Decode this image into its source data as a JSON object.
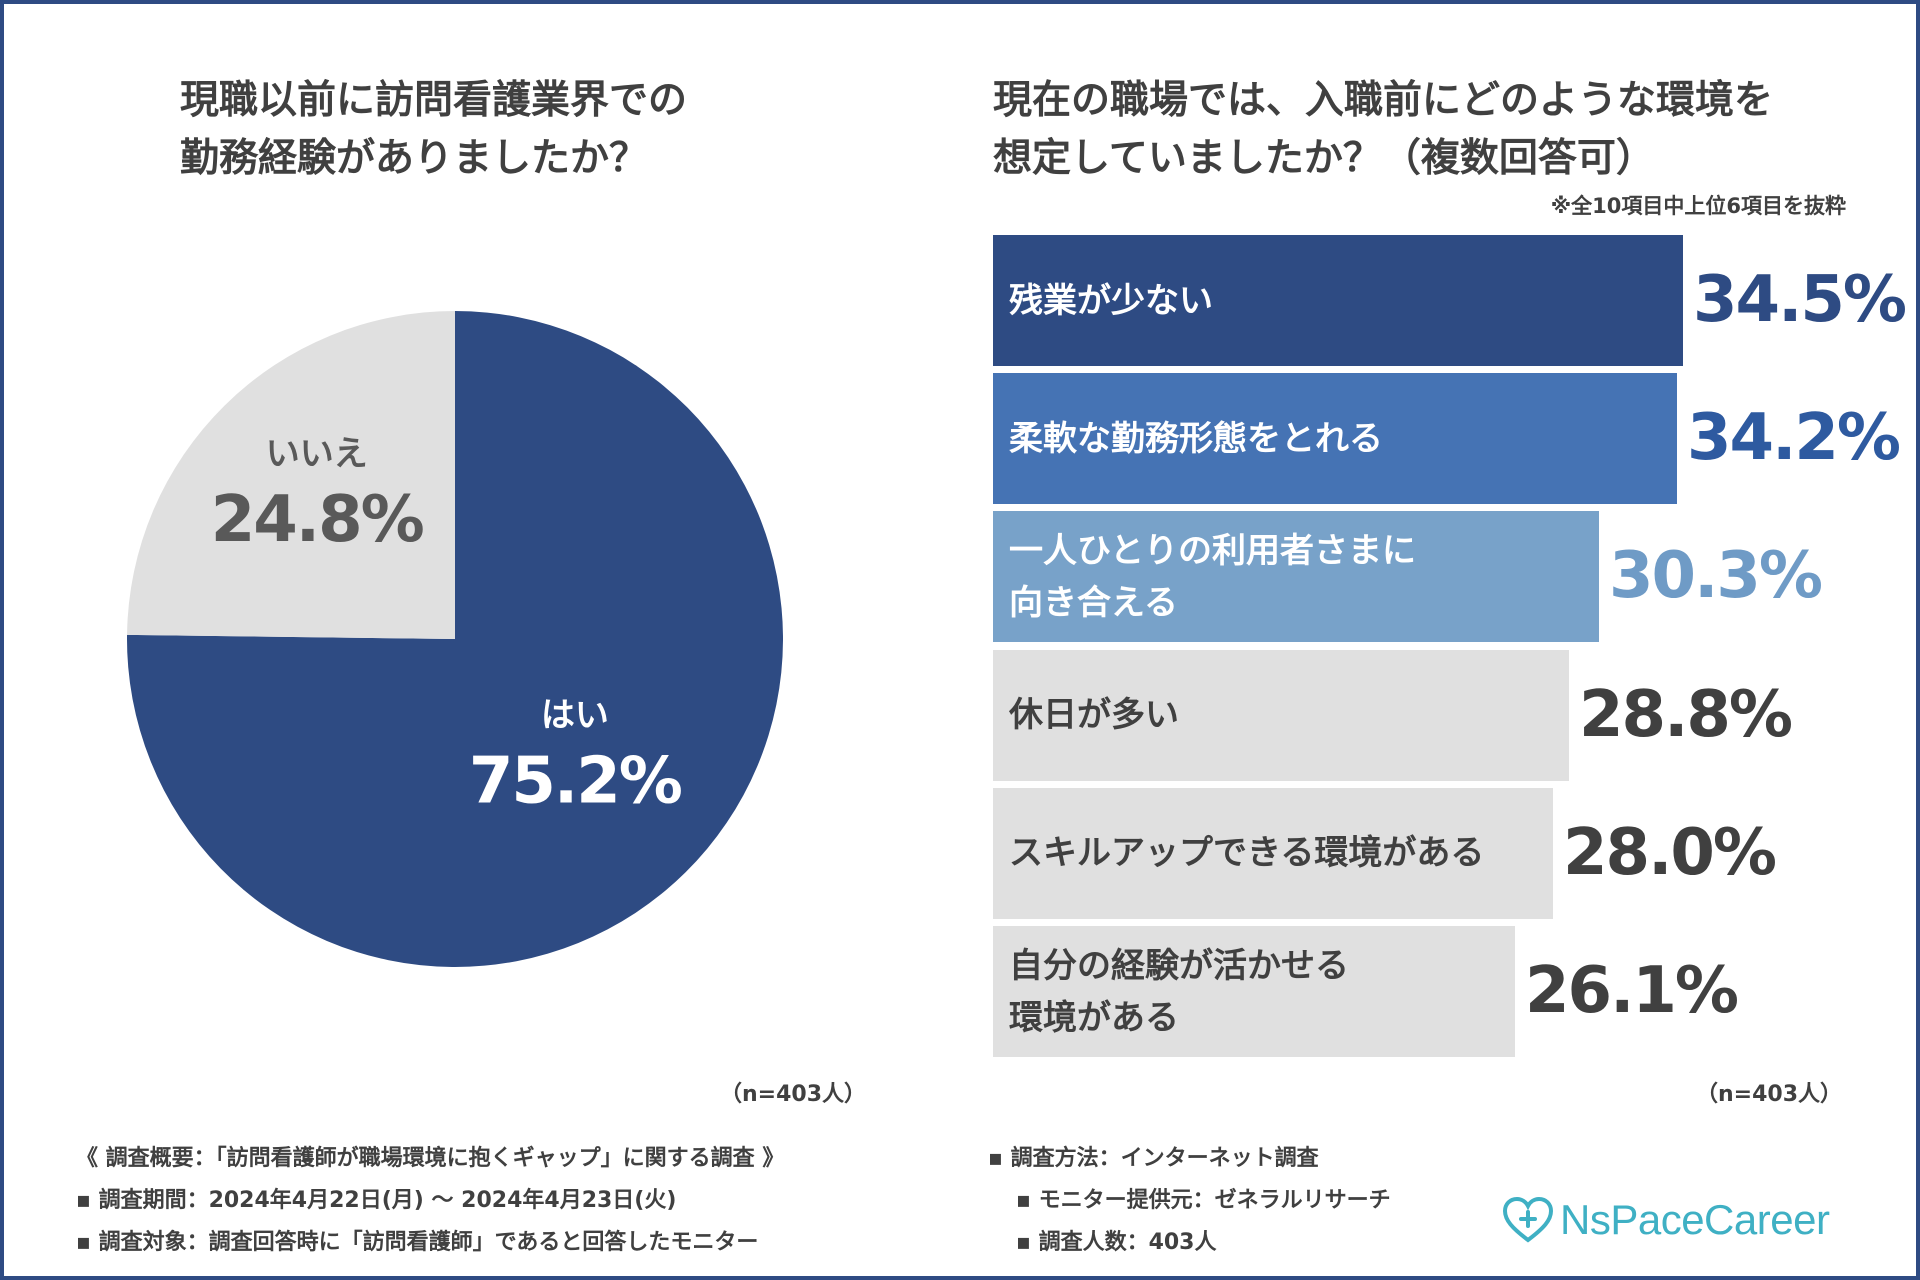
{
  "left_chart": {
    "title_line1": "現職以前に訪問看護業界での",
    "title_line2": "勤務経験がありましたか？",
    "n_label": "（n=403人）"
  },
  "right_chart": {
    "title_line1": "現在の職場では、入職前にどのような環境を",
    "title_line2": "想定していましたか？（複数回答可）",
    "note": "※全10項目中上位6項目を抜粋",
    "n_label": "（n=403人）"
  },
  "chart_data": [
    {
      "type": "pie",
      "title": "現職以前に訪問看護業界での勤務経験がありましたか？",
      "slices": [
        {
          "label": "はい",
          "value": 75.2,
          "display": "75.2%",
          "color": "#2e4b83"
        },
        {
          "label": "いいえ",
          "value": 24.8,
          "display": "24.8%",
          "color": "#e0e0e0"
        }
      ]
    },
    {
      "type": "bar",
      "orientation": "horizontal",
      "title": "現在の職場では、入職前にどのような環境を想定していましたか？（複数回答可）",
      "unit": "%",
      "categories": [
        "残業が少ない",
        "柔軟な勤務形態をとれる",
        "一人ひとりの利用者さまに\n向き合える",
        "休日が多い",
        "スキルアップできる環境がある",
        "自分の経験が活かせる\n環境がある"
      ],
      "values": [
        34.5,
        34.2,
        30.3,
        28.8,
        28.0,
        26.1
      ],
      "display": [
        "34.5%",
        "34.2%",
        "30.3%",
        "28.8%",
        "28.0%",
        "26.1%"
      ],
      "bar_colors": [
        "#2e4b83",
        "#4573b4",
        "#78a2c9",
        "#e0e0e0",
        "#e0e0e0",
        "#e0e0e0"
      ],
      "label_colors": [
        "#ffffff",
        "#ffffff",
        "#ffffff",
        "#404040",
        "#404040",
        "#404040"
      ],
      "value_colors": [
        "#2e4b83",
        "#2e5aa0",
        "#6f9bc6",
        "#404040",
        "#404040",
        "#404040"
      ]
    }
  ],
  "footer": {
    "overview": "《 調査概要：「訪問看護師が職場環境に抱くギャップ」に関する調査 》",
    "period": "▪ 調査期間：2024年4月22日(月) 〜 2024年4月23日(火)",
    "target": "▪ 調査対象：調査回答時に「訪問看護師」であると回答したモニター",
    "method": "▪ 調査方法：インターネット調査",
    "provider": "▪ モニター提供元：ゼネラルリサーチ",
    "count": "▪ 調査人数：403人"
  },
  "logo": {
    "text": "NsPaceCareer",
    "color": "#3fb0c4"
  }
}
